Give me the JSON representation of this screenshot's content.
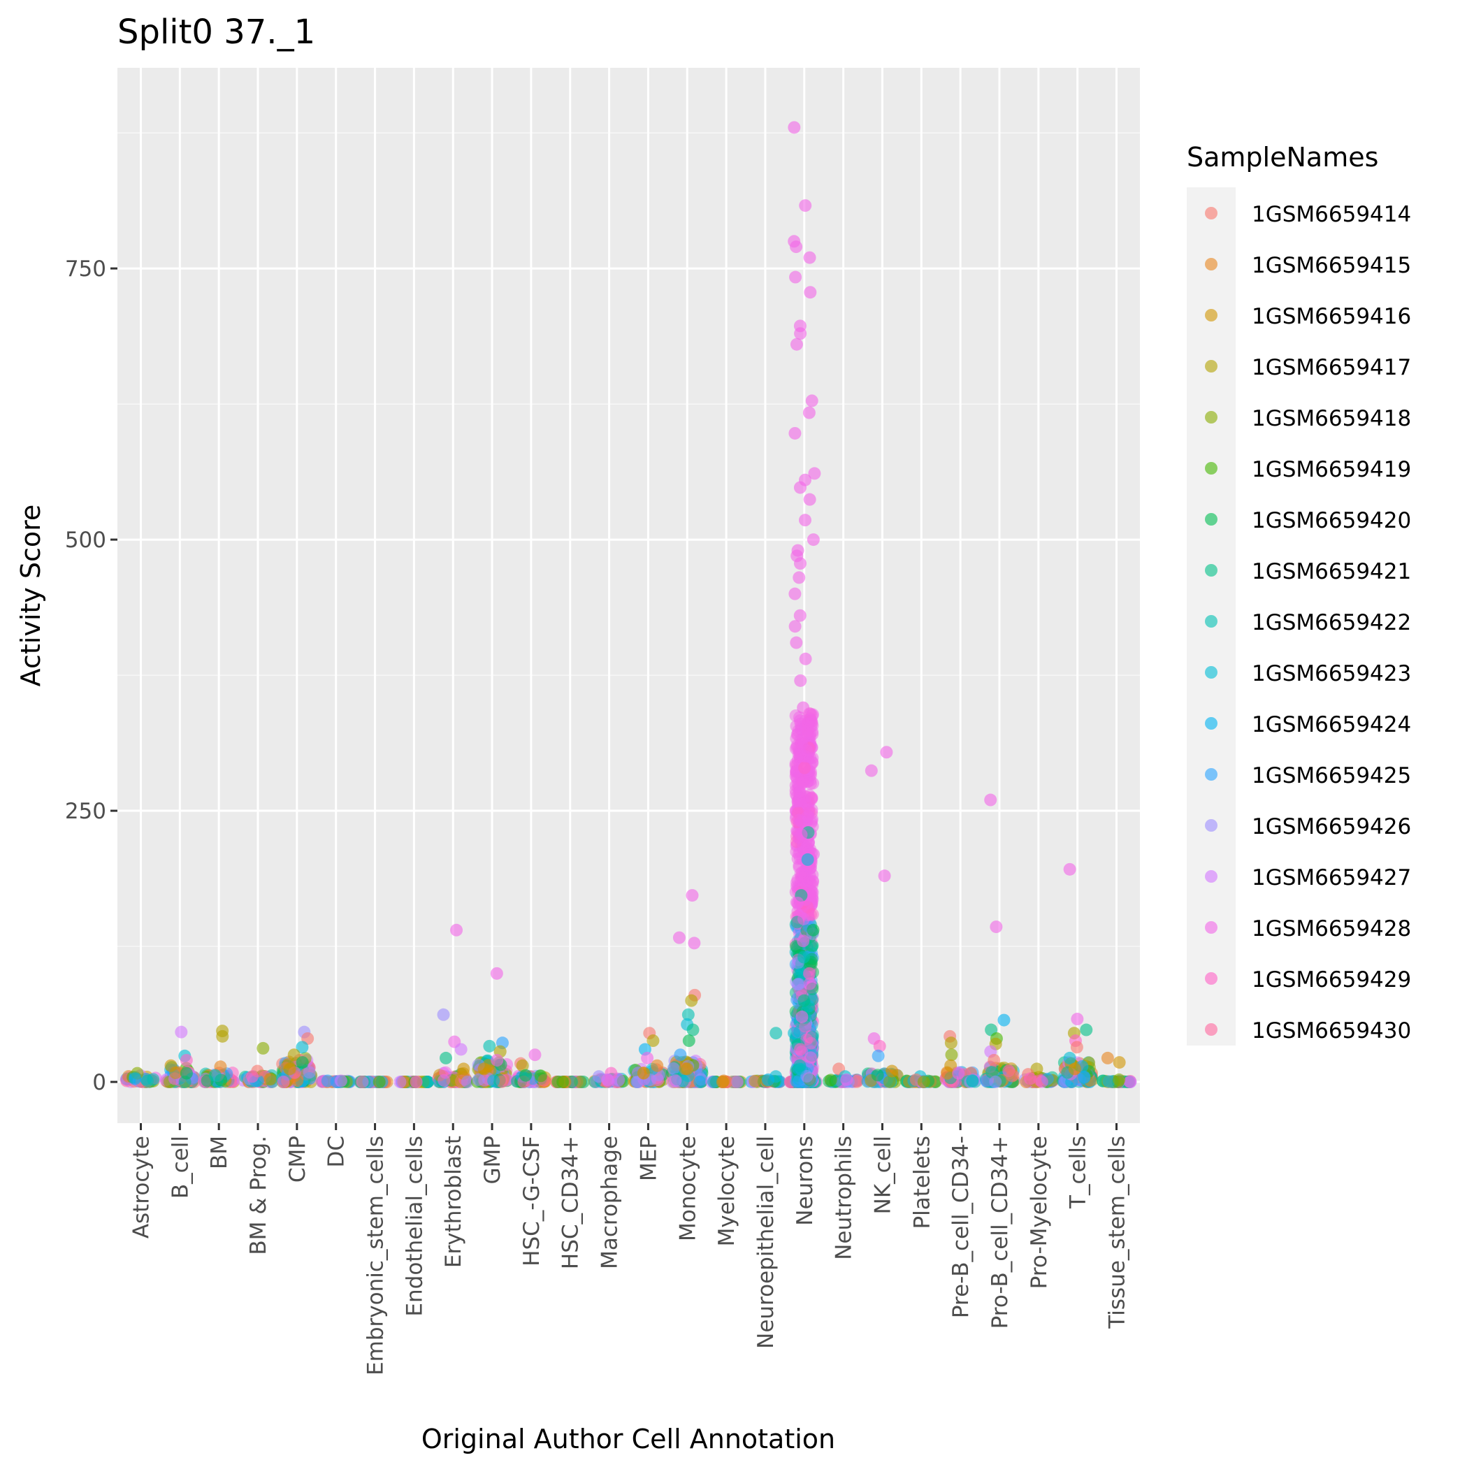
{
  "chart_data": {
    "type": "scatter",
    "subtype": "jitter strip plot",
    "title": "Split0 37._1",
    "xlabel": "Original Author Cell Annotation",
    "ylabel": "Activity Score",
    "ylim": [
      -38,
      935
    ],
    "y_ticks": [
      0,
      250,
      500,
      750
    ],
    "grid": true,
    "legend_placement": "right",
    "legend_title": "SampleNames",
    "panel_background": "#EBEBEB",
    "categories": [
      "Astrocyte",
      "B_cell",
      "BM",
      "BM & Prog.",
      "CMP",
      "DC",
      "Embryonic_stem_cells",
      "Endothelial_cells",
      "Erythroblast",
      "GMP",
      "HSC_-G-CSF",
      "HSC_CD34+",
      "Macrophage",
      "MEP",
      "Monocyte",
      "Myelocyte",
      "Neuroepithelial_cell",
      "Neurons",
      "Neutrophils",
      "NK_cell",
      "Platelets",
      "Pre-B_cell_CD34-",
      "Pro-B_cell_CD34+",
      "Pro-Myelocyte",
      "T_cells",
      "Tissue_stem_cells"
    ],
    "series": [
      {
        "name": "1GSM6659414",
        "color": "#F8766D"
      },
      {
        "name": "1GSM6659415",
        "color": "#E7851E"
      },
      {
        "name": "1GSM6659416",
        "color": "#D09400"
      },
      {
        "name": "1GSM6659417",
        "color": "#B2A100"
      },
      {
        "name": "1GSM6659418",
        "color": "#89AC00"
      },
      {
        "name": "1GSM6659419",
        "color": "#45B500"
      },
      {
        "name": "1GSM6659420",
        "color": "#00BC51"
      },
      {
        "name": "1GSM6659421",
        "color": "#00C087"
      },
      {
        "name": "1GSM6659422",
        "color": "#00C0B2"
      },
      {
        "name": "1GSM6659423",
        "color": "#00BCD6"
      },
      {
        "name": "1GSM6659424",
        "color": "#00B3F2"
      },
      {
        "name": "1GSM6659425",
        "color": "#29A3FF"
      },
      {
        "name": "1GSM6659426",
        "color": "#9C8DFF"
      },
      {
        "name": "1GSM6659427",
        "color": "#D277FF"
      },
      {
        "name": "1GSM6659428",
        "color": "#F166E8"
      },
      {
        "name": "1GSM6659429",
        "color": "#FF61C7"
      },
      {
        "name": "1GSM6659430",
        "color": "#FF689E"
      }
    ],
    "points": [
      {
        "category": "Astrocyte",
        "y": 8,
        "series": 4
      },
      {
        "category": "Astrocyte",
        "y": 3,
        "series": 10
      },
      {
        "category": "Astrocyte",
        "y": 1,
        "series": 8
      },
      {
        "category": "B_cell",
        "y": 46,
        "series": 13
      },
      {
        "category": "B_cell",
        "y": 24,
        "series": 9
      },
      {
        "category": "B_cell",
        "y": 20,
        "series": 15
      },
      {
        "category": "B_cell",
        "y": 15,
        "series": 2
      },
      {
        "category": "B_cell",
        "y": 8,
        "series": 6
      },
      {
        "category": "BM",
        "y": 47,
        "series": 3
      },
      {
        "category": "BM",
        "y": 42,
        "series": 3
      },
      {
        "category": "BM",
        "y": 14,
        "series": 1
      },
      {
        "category": "BM",
        "y": 6,
        "series": 8
      },
      {
        "category": "BM & Prog.",
        "y": 31,
        "series": 4
      },
      {
        "category": "BM & Prog.",
        "y": 10,
        "series": 0
      },
      {
        "category": "BM & Prog.",
        "y": 5,
        "series": 15
      },
      {
        "category": "CMP",
        "y": 46,
        "series": 12
      },
      {
        "category": "CMP",
        "y": 40,
        "series": 0
      },
      {
        "category": "CMP",
        "y": 32,
        "series": 9
      },
      {
        "category": "CMP",
        "y": 25,
        "series": 3
      },
      {
        "category": "CMP",
        "y": 18,
        "series": 6
      },
      {
        "category": "CMP",
        "y": 12,
        "series": 2
      },
      {
        "category": "DC",
        "y": 1,
        "series": 13
      },
      {
        "category": "DC",
        "y": 1,
        "series": 11
      },
      {
        "category": "Embryonic_stem_cells",
        "y": 0,
        "series": 5
      },
      {
        "category": "Endothelial_cells",
        "y": 0,
        "series": 15
      },
      {
        "category": "Erythroblast",
        "y": 140,
        "series": 14
      },
      {
        "category": "Erythroblast",
        "y": 62,
        "series": 12
      },
      {
        "category": "Erythroblast",
        "y": 37,
        "series": 14
      },
      {
        "category": "Erythroblast",
        "y": 30,
        "series": 13
      },
      {
        "category": "Erythroblast",
        "y": 22,
        "series": 7
      },
      {
        "category": "Erythroblast",
        "y": 12,
        "series": 2
      },
      {
        "category": "GMP",
        "y": 100,
        "series": 14
      },
      {
        "category": "GMP",
        "y": 36,
        "series": 11
      },
      {
        "category": "GMP",
        "y": 33,
        "series": 8
      },
      {
        "category": "GMP",
        "y": 28,
        "series": 3
      },
      {
        "category": "GMP",
        "y": 20,
        "series": 14
      },
      {
        "category": "GMP",
        "y": 12,
        "series": 2
      },
      {
        "category": "HSC_-G-CSF",
        "y": 25,
        "series": 14
      },
      {
        "category": "HSC_-G-CSF",
        "y": 17,
        "series": 0
      },
      {
        "category": "HSC_-G-CSF",
        "y": 15,
        "series": 3
      },
      {
        "category": "HSC_-G-CSF",
        "y": 6,
        "series": 6
      },
      {
        "category": "HSC_CD34+",
        "y": 0,
        "series": 1
      },
      {
        "category": "HSC_CD34+",
        "y": 0,
        "series": 5
      },
      {
        "category": "Macrophage",
        "y": 8,
        "series": 15
      },
      {
        "category": "Macrophage",
        "y": 5,
        "series": 12
      },
      {
        "category": "Macrophage",
        "y": 2,
        "series": 13
      },
      {
        "category": "MEP",
        "y": 45,
        "series": 0
      },
      {
        "category": "MEP",
        "y": 38,
        "series": 3
      },
      {
        "category": "MEP",
        "y": 30,
        "series": 10
      },
      {
        "category": "MEP",
        "y": 22,
        "series": 14
      },
      {
        "category": "MEP",
        "y": 15,
        "series": 1
      },
      {
        "category": "MEP",
        "y": 8,
        "series": 2
      },
      {
        "category": "Monocyte",
        "y": 172,
        "series": 14
      },
      {
        "category": "Monocyte",
        "y": 133,
        "series": 14
      },
      {
        "category": "Monocyte",
        "y": 128,
        "series": 14
      },
      {
        "category": "Monocyte",
        "y": 80,
        "series": 0
      },
      {
        "category": "Monocyte",
        "y": 75,
        "series": 3
      },
      {
        "category": "Monocyte",
        "y": 62,
        "series": 8
      },
      {
        "category": "Monocyte",
        "y": 53,
        "series": 9
      },
      {
        "category": "Monocyte",
        "y": 48,
        "series": 7
      },
      {
        "category": "Monocyte",
        "y": 38,
        "series": 6
      },
      {
        "category": "Monocyte",
        "y": 25,
        "series": 11
      },
      {
        "category": "Monocyte",
        "y": 12,
        "series": 2
      },
      {
        "category": "Myelocyte",
        "y": 1,
        "series": 1
      },
      {
        "category": "Myelocyte",
        "y": 0,
        "series": 2
      },
      {
        "category": "Neuroepithelial_cell",
        "y": 45,
        "series": 8
      },
      {
        "category": "Neuroepithelial_cell",
        "y": 5,
        "series": 9
      },
      {
        "category": "Neuroepithelial_cell",
        "y": 2,
        "series": 10
      },
      {
        "category": "Neurons",
        "y": 880,
        "series": 14
      },
      {
        "category": "Neurons",
        "y": 808,
        "series": 14
      },
      {
        "category": "Neurons",
        "y": 775,
        "series": 14
      },
      {
        "category": "Neurons",
        "y": 770,
        "series": 14
      },
      {
        "category": "Neurons",
        "y": 760,
        "series": 14
      },
      {
        "category": "Neurons",
        "y": 742,
        "series": 14
      },
      {
        "category": "Neurons",
        "y": 728,
        "series": 14
      },
      {
        "category": "Neurons",
        "y": 697,
        "series": 14
      },
      {
        "category": "Neurons",
        "y": 690,
        "series": 14
      },
      {
        "category": "Neurons",
        "y": 680,
        "series": 14
      },
      {
        "category": "Neurons",
        "y": 628,
        "series": 14
      },
      {
        "category": "Neurons",
        "y": 617,
        "series": 14
      },
      {
        "category": "Neurons",
        "y": 598,
        "series": 14
      },
      {
        "category": "Neurons",
        "y": 561,
        "series": 14
      },
      {
        "category": "Neurons",
        "y": 555,
        "series": 14
      },
      {
        "category": "Neurons",
        "y": 548,
        "series": 14
      },
      {
        "category": "Neurons",
        "y": 537,
        "series": 14
      },
      {
        "category": "Neurons",
        "y": 518,
        "series": 14
      },
      {
        "category": "Neurons",
        "y": 500,
        "series": 14
      },
      {
        "category": "Neurons",
        "y": 490,
        "series": 14
      },
      {
        "category": "Neurons",
        "y": 485,
        "series": 14
      },
      {
        "category": "Neurons",
        "y": 478,
        "series": 14
      },
      {
        "category": "Neurons",
        "y": 465,
        "series": 14
      },
      {
        "category": "Neurons",
        "y": 450,
        "series": 14
      },
      {
        "category": "Neurons",
        "y": 430,
        "series": 14
      },
      {
        "category": "Neurons",
        "y": 420,
        "series": 14
      },
      {
        "category": "Neurons",
        "y": 405,
        "series": 14
      },
      {
        "category": "Neurons",
        "y": 390,
        "series": 14
      },
      {
        "category": "Neurons",
        "y": 370,
        "series": 14
      },
      {
        "category": "Neurons",
        "y": 345,
        "series": 14
      },
      {
        "category": "Neurons",
        "y": 325,
        "series": 14
      },
      {
        "category": "Neurons",
        "y": 300,
        "series": 14
      },
      {
        "category": "Neurons",
        "y": 280,
        "series": 14
      },
      {
        "category": "Neurons",
        "y": 262,
        "series": 14
      },
      {
        "category": "Neurons",
        "y": 245,
        "series": 14
      },
      {
        "category": "Neurons",
        "y": 230,
        "series": 7
      },
      {
        "category": "Neurons",
        "y": 228,
        "series": 14
      },
      {
        "category": "Neurons",
        "y": 210,
        "series": 14
      },
      {
        "category": "Neurons",
        "y": 205,
        "series": 9
      },
      {
        "category": "Neurons",
        "y": 190,
        "series": 14
      },
      {
        "category": "Neurons",
        "y": 172,
        "series": 7
      },
      {
        "category": "Neurons",
        "y": 165,
        "series": 14
      },
      {
        "category": "Neurons",
        "y": 140,
        "series": 6
      },
      {
        "category": "Neurons",
        "y": 130,
        "series": 14
      },
      {
        "category": "Neurons",
        "y": 115,
        "series": 8
      },
      {
        "category": "Neurons",
        "y": 100,
        "series": 15
      },
      {
        "category": "Neurons",
        "y": 90,
        "series": 12
      },
      {
        "category": "Neurons",
        "y": 75,
        "series": 7
      },
      {
        "category": "Neurons",
        "y": 60,
        "series": 14
      },
      {
        "category": "Neurons",
        "y": 45,
        "series": 9
      },
      {
        "category": "Neurons",
        "y": 30,
        "series": 15
      },
      {
        "category": "Neurons",
        "y": 15,
        "series": 8
      },
      {
        "category": "Neutrophils",
        "y": 12,
        "series": 0
      },
      {
        "category": "Neutrophils",
        "y": 5,
        "series": 9
      },
      {
        "category": "Neutrophils",
        "y": 2,
        "series": 14
      },
      {
        "category": "NK_cell",
        "y": 304,
        "series": 14
      },
      {
        "category": "NK_cell",
        "y": 287,
        "series": 14
      },
      {
        "category": "NK_cell",
        "y": 190,
        "series": 14
      },
      {
        "category": "NK_cell",
        "y": 40,
        "series": 14
      },
      {
        "category": "NK_cell",
        "y": 33,
        "series": 15
      },
      {
        "category": "NK_cell",
        "y": 24,
        "series": 11
      },
      {
        "category": "NK_cell",
        "y": 10,
        "series": 2
      },
      {
        "category": "Platelets",
        "y": 5,
        "series": 9
      },
      {
        "category": "Platelets",
        "y": 2,
        "series": 0
      },
      {
        "category": "Platelets",
        "y": 0,
        "series": 4
      },
      {
        "category": "Pre-B_cell_CD34-",
        "y": 42,
        "series": 0
      },
      {
        "category": "Pre-B_cell_CD34-",
        "y": 36,
        "series": 3
      },
      {
        "category": "Pre-B_cell_CD34-",
        "y": 25,
        "series": 4
      },
      {
        "category": "Pre-B_cell_CD34-",
        "y": 15,
        "series": 2
      },
      {
        "category": "Pre-B_cell_CD34-",
        "y": 8,
        "series": 14
      },
      {
        "category": "Pro-B_cell_CD34+",
        "y": 260,
        "series": 14
      },
      {
        "category": "Pro-B_cell_CD34+",
        "y": 143,
        "series": 14
      },
      {
        "category": "Pro-B_cell_CD34+",
        "y": 57,
        "series": 10
      },
      {
        "category": "Pro-B_cell_CD34+",
        "y": 48,
        "series": 7
      },
      {
        "category": "Pro-B_cell_CD34+",
        "y": 40,
        "series": 5
      },
      {
        "category": "Pro-B_cell_CD34+",
        "y": 35,
        "series": 3
      },
      {
        "category": "Pro-B_cell_CD34+",
        "y": 28,
        "series": 13
      },
      {
        "category": "Pro-B_cell_CD34+",
        "y": 20,
        "series": 0
      },
      {
        "category": "Pro-Myelocyte",
        "y": 12,
        "series": 3
      },
      {
        "category": "Pro-Myelocyte",
        "y": 7,
        "series": 0
      },
      {
        "category": "Pro-Myelocyte",
        "y": 3,
        "series": 15
      },
      {
        "category": "T_cells",
        "y": 196,
        "series": 14
      },
      {
        "category": "T_cells",
        "y": 58,
        "series": 14
      },
      {
        "category": "T_cells",
        "y": 48,
        "series": 7
      },
      {
        "category": "T_cells",
        "y": 45,
        "series": 3
      },
      {
        "category": "T_cells",
        "y": 38,
        "series": 15
      },
      {
        "category": "T_cells",
        "y": 32,
        "series": 0
      },
      {
        "category": "T_cells",
        "y": 22,
        "series": 9
      },
      {
        "category": "T_cells",
        "y": 12,
        "series": 2
      },
      {
        "category": "Tissue_stem_cells",
        "y": 22,
        "series": 1
      },
      {
        "category": "Tissue_stem_cells",
        "y": 18,
        "series": 2
      },
      {
        "category": "Tissue_stem_cells",
        "y": 2,
        "series": 4
      }
    ],
    "box_spread": [
      {
        "category": "Astrocyte",
        "max": 6
      },
      {
        "category": "B_cell",
        "max": 14
      },
      {
        "category": "BM",
        "max": 9
      },
      {
        "category": "BM & Prog.",
        "max": 6
      },
      {
        "category": "CMP",
        "max": 22
      },
      {
        "category": "DC",
        "max": 1
      },
      {
        "category": "Embryonic_stem_cells",
        "max": 0
      },
      {
        "category": "Endothelial_cells",
        "max": 0
      },
      {
        "category": "Erythroblast",
        "max": 9
      },
      {
        "category": "GMP",
        "max": 20
      },
      {
        "category": "HSC_-G-CSF",
        "max": 6
      },
      {
        "category": "HSC_CD34+",
        "max": 0
      },
      {
        "category": "Macrophage",
        "max": 3
      },
      {
        "category": "MEP",
        "max": 12
      },
      {
        "category": "Monocyte",
        "max": 20
      },
      {
        "category": "Myelocyte",
        "max": 0
      },
      {
        "category": "Neuroepithelial_cell",
        "max": 1
      },
      {
        "category": "Neurons",
        "max": 0
      },
      {
        "category": "Neutrophils",
        "max": 2
      },
      {
        "category": "NK_cell",
        "max": 8
      },
      {
        "category": "Platelets",
        "max": 1
      },
      {
        "category": "Pre-B_cell_CD34-",
        "max": 10
      },
      {
        "category": "Pro-B_cell_CD34+",
        "max": 14
      },
      {
        "category": "Pro-Myelocyte",
        "max": 5
      },
      {
        "category": "T_cells",
        "max": 18
      },
      {
        "category": "Tissue_stem_cells",
        "max": 1
      }
    ],
    "neurons_dense_column": {
      "category": "Neurons",
      "ymin": 0,
      "ymax": 340
    }
  }
}
